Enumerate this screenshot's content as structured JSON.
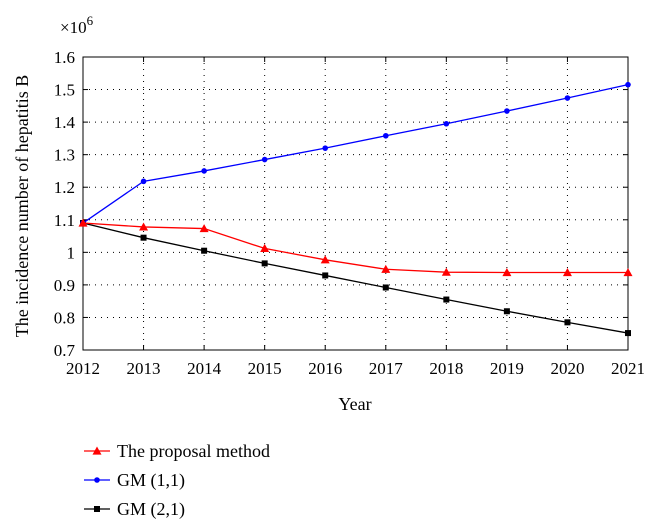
{
  "chart_data": {
    "type": "line",
    "title": "",
    "xlabel": "Year",
    "ylabel": "The incidence number of hepatitis B",
    "y_multiplier_prefix": "×10",
    "y_multiplier_exponent": "6",
    "x": [
      2012,
      2013,
      2014,
      2015,
      2016,
      2017,
      2018,
      2019,
      2020,
      2021
    ],
    "xlim": [
      2012,
      2021
    ],
    "ylim": [
      0.7,
      1.6
    ],
    "x_ticks": [
      "2012",
      "2013",
      "2014",
      "2015",
      "2016",
      "2017",
      "2018",
      "2019",
      "2020",
      "2021"
    ],
    "y_ticks": [
      "0.7",
      "0.8",
      "0.9",
      "1",
      "1.1",
      "1.2",
      "1.3",
      "1.4",
      "1.5",
      "1.6"
    ],
    "grid": true,
    "legend_position": "bottom-left",
    "series": [
      {
        "name": "The proposal method",
        "color": "#ff0000",
        "marker": "triangle",
        "values": [
          1.09,
          1.078,
          1.073,
          1.012,
          0.977,
          0.948,
          0.939,
          0.938,
          0.938,
          0.938
        ]
      },
      {
        "name": "GM (1,1)",
        "color": "#0000ff",
        "marker": "circle",
        "values": [
          1.09,
          1.218,
          1.25,
          1.285,
          1.32,
          1.358,
          1.395,
          1.434,
          1.474,
          1.515
        ]
      },
      {
        "name": "GM (2,1)",
        "color": "#000000",
        "marker": "square",
        "values": [
          1.09,
          1.045,
          1.005,
          0.966,
          0.929,
          0.892,
          0.855,
          0.819,
          0.785,
          0.752
        ]
      }
    ]
  }
}
